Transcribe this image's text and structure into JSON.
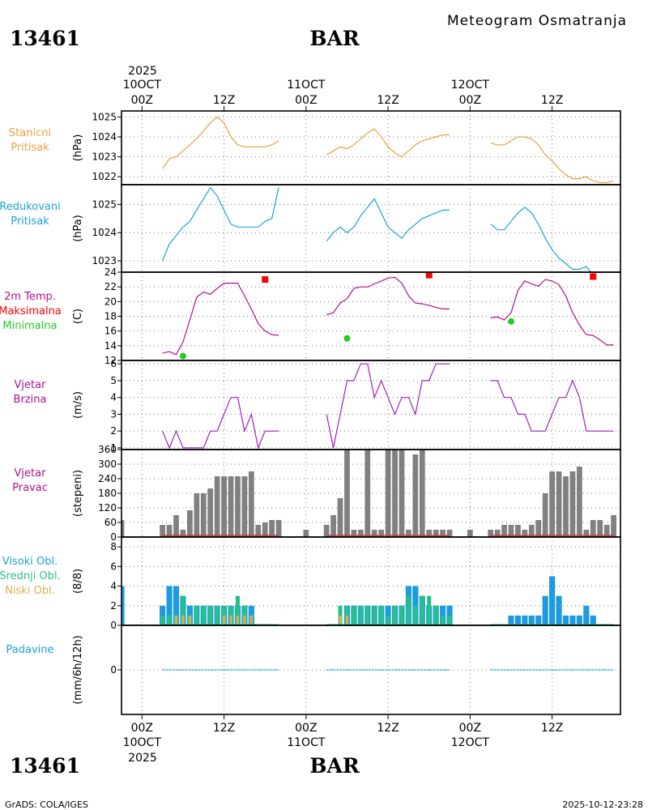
{
  "header": {
    "subtitle": "Meteogram Osmatranja",
    "station_id": "13461",
    "station_name": "BAR",
    "footer_left": "GrADS: COLA/IGES",
    "footer_right": "2025-10-12-23:28"
  },
  "time_axis": {
    "year": "2025",
    "days": [
      {
        "date": "10OCT",
        "hour": "00Z"
      },
      {
        "date": "11OCT",
        "hour": "00Z"
      },
      {
        "date": "12OCT",
        "hour": "00Z"
      }
    ],
    "mid_label": "12Z",
    "range_hours": [
      -3,
      70
    ]
  },
  "colors": {
    "pressure": "#e8a23c",
    "reduced": "#1ba3d6",
    "temp": "#b0108e",
    "tmax": "#ff0000",
    "tmin": "#22cc22",
    "wind": "#a020c0",
    "bar": "#808080",
    "dirline": "#c04040",
    "high": "#1e9be0",
    "mid": "#27c08a",
    "low": "#d4b050",
    "precip": "#1ba3d6"
  },
  "chart_data": [
    {
      "type": "line",
      "panel": "pressure",
      "labels": [
        "Stanicni",
        "Pritisak"
      ],
      "ylabel": "(hPa)",
      "ylim": [
        1021.6,
        1025.3
      ],
      "yticks": [
        1022,
        1023,
        1024,
        1025
      ],
      "segments": [
        {
          "x": [
            3,
            4,
            5,
            6,
            7,
            8,
            9,
            10,
            11,
            12,
            13,
            14,
            15,
            16,
            17,
            18,
            19,
            20
          ],
          "y": [
            1022.4,
            1022.9,
            1023.0,
            1023.3,
            1023.6,
            1023.9,
            1024.3,
            1024.7,
            1025.0,
            1024.7,
            1024.0,
            1023.6,
            1023.5,
            1023.5,
            1023.5,
            1023.5,
            1023.6,
            1023.8
          ]
        },
        {
          "x": [
            27,
            28,
            29,
            30,
            31,
            32,
            33,
            34,
            35,
            36,
            37,
            38,
            39,
            40,
            41,
            42,
            43,
            44,
            45
          ],
          "y": [
            1023.1,
            1023.3,
            1023.5,
            1023.4,
            1023.6,
            1023.9,
            1024.2,
            1024.4,
            1024.0,
            1023.5,
            1023.2,
            1023.0,
            1023.3,
            1023.6,
            1023.8,
            1023.9,
            1024.0,
            1024.1,
            1024.1
          ]
        },
        {
          "x": [
            51,
            52,
            53,
            54,
            55,
            56,
            57,
            58,
            59,
            60,
            61,
            62,
            63,
            64,
            65,
            66,
            67,
            68,
            69
          ],
          "y": [
            1023.7,
            1023.6,
            1023.6,
            1023.8,
            1024.0,
            1024.0,
            1023.9,
            1023.6,
            1023.1,
            1022.8,
            1022.4,
            1022.1,
            1021.9,
            1021.9,
            1022.0,
            1021.8,
            1021.7,
            1021.7,
            1021.8
          ]
        }
      ]
    },
    {
      "type": "line",
      "panel": "reduced_pressure",
      "labels": [
        "Redukovani",
        "Pritisak"
      ],
      "ylabel": "(hPa)",
      "ylim": [
        1022.6,
        1025.7
      ],
      "yticks": [
        1023,
        1024,
        1025
      ],
      "segments": [
        {
          "x": [
            3,
            4,
            5,
            6,
            7,
            8,
            9,
            10,
            11,
            12,
            13,
            14,
            15,
            16,
            17,
            18,
            19,
            20
          ],
          "y": [
            1023.0,
            1023.6,
            1023.9,
            1024.2,
            1024.4,
            1024.8,
            1025.2,
            1025.6,
            1025.3,
            1024.8,
            1024.3,
            1024.2,
            1024.2,
            1024.2,
            1024.2,
            1024.4,
            1024.5,
            1025.6
          ]
        },
        {
          "x": [
            27,
            28,
            29,
            30,
            31,
            32,
            33,
            34,
            35,
            36,
            37,
            38,
            39,
            40,
            41,
            42,
            43,
            44,
            45
          ],
          "y": [
            1023.7,
            1024.0,
            1024.2,
            1024.0,
            1024.2,
            1024.6,
            1024.9,
            1025.2,
            1024.7,
            1024.2,
            1024.0,
            1023.8,
            1024.1,
            1024.3,
            1024.5,
            1024.6,
            1024.7,
            1024.8,
            1024.8
          ]
        },
        {
          "x": [
            51,
            52,
            53,
            54,
            55,
            56,
            57,
            58,
            59,
            60,
            61,
            62,
            63,
            64,
            65,
            66,
            67,
            68,
            69
          ],
          "y": [
            1024.3,
            1024.1,
            1024.1,
            1024.4,
            1024.7,
            1024.9,
            1024.7,
            1024.3,
            1023.8,
            1023.4,
            1023.1,
            1022.9,
            1022.7,
            1022.7,
            1022.8,
            1022.5,
            1022.4,
            1022.5,
            1022.4
          ]
        }
      ]
    },
    {
      "type": "line",
      "panel": "temperature",
      "labels": [
        "2m Temp.",
        "Maksimalna",
        "Minimalna"
      ],
      "ylabel": "(C)",
      "ylim": [
        12,
        24
      ],
      "yticks": [
        12,
        14,
        16,
        18,
        20,
        22,
        24
      ],
      "segments": [
        {
          "x": [
            3,
            4,
            5,
            6,
            7,
            8,
            9,
            10,
            11,
            12,
            13,
            14,
            15,
            16,
            17,
            18,
            19,
            20
          ],
          "y": [
            13.0,
            13.2,
            12.8,
            14.5,
            17.5,
            20.6,
            21.3,
            21.0,
            21.8,
            22.5,
            22.5,
            22.5,
            20.8,
            19.0,
            17.0,
            16.0,
            15.5,
            15.4
          ]
        },
        {
          "x": [
            27,
            28,
            29,
            30,
            31,
            32,
            33,
            34,
            35,
            36,
            37,
            38,
            39,
            40,
            41,
            42,
            43,
            44,
            45
          ],
          "y": [
            18.2,
            18.5,
            19.8,
            20.4,
            21.8,
            22.0,
            22.0,
            22.4,
            22.8,
            23.2,
            23.3,
            22.5,
            20.8,
            19.8,
            19.7,
            19.5,
            19.2,
            19.0,
            19.0
          ]
        },
        {
          "x": [
            51,
            52,
            53,
            54,
            55,
            56,
            57,
            58,
            59,
            60,
            61,
            62,
            63,
            64,
            65,
            66,
            67,
            68,
            69
          ],
          "y": [
            17.8,
            17.9,
            17.5,
            18.5,
            21.5,
            22.8,
            22.4,
            22.1,
            23.0,
            22.8,
            22.3,
            20.8,
            18.5,
            16.8,
            15.5,
            15.4,
            14.8,
            14.1,
            14.1
          ]
        }
      ],
      "tmax": [
        {
          "x": 18,
          "y": 23.0
        },
        {
          "x": 42,
          "y": 23.6
        },
        {
          "x": 66,
          "y": 23.4
        }
      ],
      "tmin": [
        {
          "x": 6,
          "y": 12.6
        },
        {
          "x": 30,
          "y": 15.0
        },
        {
          "x": 54,
          "y": 17.3
        }
      ]
    },
    {
      "type": "line",
      "panel": "wind_speed",
      "labels": [
        "Vjetar",
        "Brzina"
      ],
      "ylabel": "(m/s)",
      "ylim": [
        0.9,
        6.2
      ],
      "yticks": [
        1,
        2,
        3,
        4,
        5,
        6
      ],
      "segments": [
        {
          "x": [
            3,
            4,
            5,
            6,
            7,
            8,
            9,
            10,
            11,
            12,
            13,
            14,
            15,
            16,
            17,
            18,
            19,
            20
          ],
          "y": [
            2,
            1,
            2,
            1,
            1,
            1,
            1,
            2,
            2,
            3,
            4,
            4,
            2,
            3,
            1,
            2,
            2,
            2
          ]
        },
        {
          "x": [
            27,
            28,
            29,
            30,
            31,
            32,
            33,
            34,
            35,
            36,
            37,
            38,
            39,
            40,
            41,
            42,
            43,
            44,
            45
          ],
          "y": [
            3,
            1,
            3,
            5,
            5,
            6,
            6,
            4,
            5,
            4,
            3,
            4,
            4,
            3,
            5,
            5,
            6,
            6,
            6
          ]
        },
        {
          "x": [
            51,
            52,
            53,
            54,
            55,
            56,
            57,
            58,
            59,
            60,
            61,
            62,
            63,
            64,
            65,
            66,
            67,
            68,
            69
          ],
          "y": [
            5,
            5,
            4,
            4,
            3,
            3,
            2,
            2,
            2,
            3,
            4,
            4,
            5,
            4,
            2,
            2,
            2,
            2,
            2
          ]
        }
      ]
    },
    {
      "type": "bar",
      "panel": "wind_direction",
      "labels": [
        "Vjetar",
        "Pravac"
      ],
      "ylabel": "(stepeni)",
      "ylim": [
        0,
        360
      ],
      "yticks": [
        0,
        60,
        120,
        180,
        240,
        300,
        360
      ],
      "x": [
        -3,
        3,
        4,
        5,
        6,
        7,
        8,
        9,
        10,
        11,
        12,
        13,
        14,
        15,
        16,
        17,
        18,
        19,
        20,
        21,
        24,
        27,
        28,
        29,
        30,
        31,
        32,
        33,
        34,
        35,
        36,
        37,
        38,
        39,
        40,
        41,
        42,
        43,
        44,
        45,
        48,
        51,
        52,
        53,
        54,
        55,
        56,
        57,
        58,
        59,
        60,
        61,
        62,
        63,
        64,
        65,
        66,
        67,
        68,
        69
      ],
      "values": [
        70,
        50,
        50,
        90,
        30,
        110,
        180,
        180,
        200,
        250,
        250,
        250,
        250,
        250,
        270,
        50,
        60,
        70,
        70,
        0,
        30,
        50,
        90,
        160,
        360,
        30,
        30,
        360,
        30,
        30,
        360,
        360,
        360,
        30,
        340,
        360,
        30,
        30,
        30,
        30,
        30,
        30,
        30,
        50,
        50,
        50,
        30,
        50,
        70,
        180,
        270,
        270,
        250,
        270,
        290,
        30,
        70,
        70,
        50,
        90
      ],
      "zero_segments": [
        [
          3,
          20
        ],
        [
          27,
          45
        ],
        [
          51,
          69
        ]
      ]
    },
    {
      "type": "bar",
      "panel": "clouds",
      "labels": [
        "Visoki Obl.",
        "Srednji Obl.",
        "Niski Obl."
      ],
      "ylabel": "(8/8)",
      "ylim": [
        0,
        9
      ],
      "yticks": [
        0,
        2,
        4,
        6,
        8
      ],
      "series": [
        {
          "name": "Visoki Obl.",
          "x": [
            -3,
            3,
            4,
            5,
            6,
            7,
            8,
            9,
            10,
            11,
            12,
            13,
            14,
            15,
            16,
            30,
            31,
            32,
            33,
            34,
            35,
            36,
            37,
            38,
            39,
            40,
            41,
            42,
            43,
            44,
            45,
            54,
            55,
            56,
            57,
            58,
            59,
            60,
            61,
            62,
            63,
            64,
            65,
            66
          ],
          "values": [
            4,
            2,
            4,
            4,
            3,
            2,
            2,
            2,
            2,
            2,
            2,
            2,
            2,
            2,
            2,
            2,
            2,
            2,
            2,
            2,
            2,
            2,
            2,
            2,
            4,
            4,
            3,
            2,
            2,
            2,
            2,
            1,
            1,
            1,
            1,
            1,
            3,
            5,
            3,
            1,
            1,
            1,
            2,
            1
          ]
        },
        {
          "name": "Srednji Obl.",
          "x": [
            3,
            4,
            5,
            6,
            7,
            8,
            9,
            10,
            11,
            12,
            13,
            14,
            15,
            16,
            29,
            30,
            31,
            32,
            33,
            34,
            35,
            36,
            37,
            38,
            39,
            40,
            41,
            42,
            43,
            44,
            45
          ],
          "values": [
            1,
            1,
            1,
            3,
            1,
            2,
            2,
            2,
            2,
            2,
            2,
            3,
            2,
            1,
            2,
            2,
            2,
            2,
            2,
            2,
            2,
            1,
            2,
            2,
            3,
            2,
            3,
            3,
            2,
            1,
            1
          ]
        },
        {
          "name": "Niski Obl.",
          "x": [
            5,
            6,
            7,
            12,
            13,
            14,
            15,
            16,
            29,
            30
          ],
          "values": [
            1,
            1,
            1,
            1,
            1,
            1,
            1,
            1,
            1,
            1
          ]
        }
      ]
    },
    {
      "type": "line",
      "panel": "precipitation",
      "labels": [
        "Padavine"
      ],
      "ylabel": "(mm/6h/12h)",
      "ylim": [
        -1,
        1
      ],
      "yticks": [
        0
      ],
      "segments": [
        {
          "x": [
            3,
            20
          ],
          "y": [
            0,
            0
          ]
        },
        {
          "x": [
            27,
            45
          ],
          "y": [
            0,
            0
          ]
        },
        {
          "x": [
            51,
            69
          ],
          "y": [
            0,
            0
          ]
        }
      ]
    }
  ]
}
